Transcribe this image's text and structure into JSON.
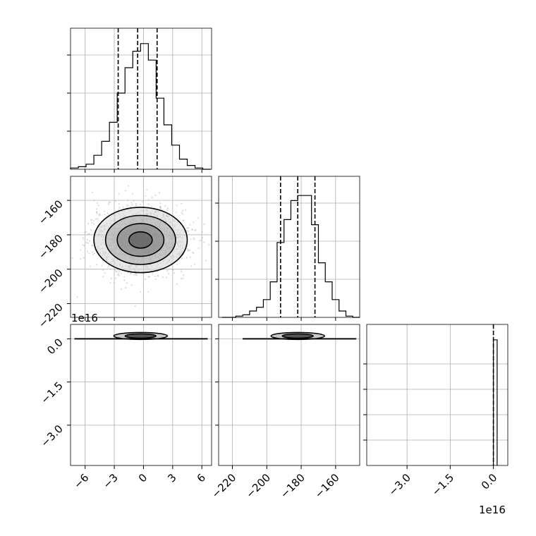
{
  "chart_data": {
    "type": "corner",
    "grid": true,
    "scientific_offset_label": "1e16",
    "params": {
      "p0": {
        "range": [
          -7.5,
          7.0
        ],
        "ticks": [
          -6,
          -3,
          0,
          3,
          6
        ],
        "tick_labels": [
          "−6",
          "−3",
          "0",
          "3",
          "6"
        ]
      },
      "p1": {
        "range": [
          -228,
          -146
        ],
        "ticks": [
          -220,
          -200,
          -180,
          -160
        ],
        "tick_labels": [
          "−220",
          "−200",
          "−180",
          "−160"
        ]
      },
      "p2": {
        "range": [
          -4.4,
          0.5
        ],
        "ticks": [
          -3.0,
          -1.5,
          0.0
        ],
        "tick_labels": [
          "−3.0",
          "−1.5",
          "0.0"
        ],
        "scale_label": "1e16"
      }
    },
    "hist_p0": {
      "bin_edges": [
        -7.5,
        -6.7,
        -5.9,
        -5.1,
        -4.3,
        -3.5,
        -2.7,
        -1.9,
        -1.1,
        -0.3,
        0.5,
        1.3,
        2.1,
        2.9,
        3.7,
        4.5,
        5.3,
        6.1,
        6.9
      ],
      "counts": [
        0.01,
        0.02,
        0.04,
        0.11,
        0.22,
        0.37,
        0.6,
        0.8,
        0.93,
        0.99,
        0.86,
        0.56,
        0.35,
        0.19,
        0.08,
        0.03,
        0.01,
        0.0
      ],
      "quantiles": [
        -2.6,
        -0.6,
        1.4
      ]
    },
    "hist_p1": {
      "bin_edges": [
        -226,
        -222,
        -218,
        -214,
        -210,
        -206,
        -202,
        -198,
        -194,
        -190,
        -186,
        -182,
        -178,
        -174,
        -170,
        -166,
        -162,
        -158,
        -154,
        -150,
        -146
      ],
      "counts": [
        0.0,
        0.0,
        0.01,
        0.02,
        0.05,
        0.08,
        0.14,
        0.28,
        0.59,
        0.77,
        0.92,
        0.96,
        0.96,
        0.73,
        0.43,
        0.28,
        0.14,
        0.05,
        0.01,
        0.0
      ],
      "quantiles": [
        -192,
        -182,
        -172
      ]
    },
    "hist_p2": {
      "bin_edges": [
        0.0,
        0.13
      ],
      "counts": [
        0.99
      ],
      "quantiles": [
        0.0
      ]
    },
    "contour_p0_p1": {
      "center": [
        -0.3,
        -183
      ],
      "sigma": [
        2.4,
        9.5
      ],
      "levels_sigma": [
        0.5,
        1.0,
        1.5,
        2.0
      ]
    }
  }
}
